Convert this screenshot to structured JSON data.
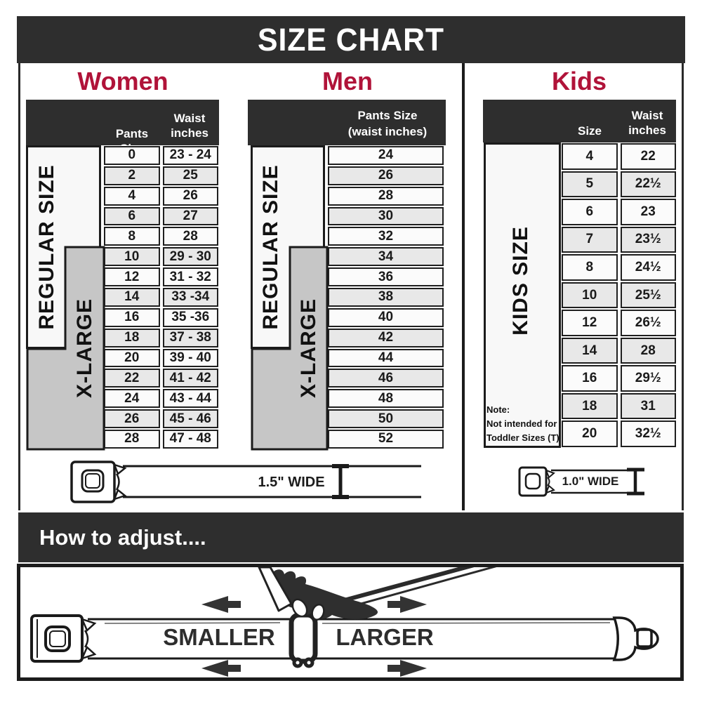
{
  "title": "SIZE CHART",
  "colors": {
    "accent": "#b01339",
    "dark": "#2e2e2e",
    "gray_box": "#c6c6c6",
    "row_base": "#fbfbfb",
    "row_alt": "#e8e8e8"
  },
  "sections": {
    "women": {
      "heading": "Women",
      "side_regular": "REGULAR SIZE",
      "side_xlarge": "X-LARGE",
      "col_pants": "Pants Size",
      "col_waist": "Waist inches",
      "rows": [
        [
          "0",
          "23 - 24"
        ],
        [
          "2",
          "25"
        ],
        [
          "4",
          "26"
        ],
        [
          "6",
          "27"
        ],
        [
          "8",
          "28"
        ],
        [
          "10",
          "29 - 30"
        ],
        [
          "12",
          "31 - 32"
        ],
        [
          "14",
          "33 -34"
        ],
        [
          "16",
          "35 -36"
        ],
        [
          "18",
          "37 - 38"
        ],
        [
          "20",
          "39 - 40"
        ],
        [
          "22",
          "41 - 42"
        ],
        [
          "24",
          "43 - 44"
        ],
        [
          "26",
          "45 - 46"
        ],
        [
          "28",
          "47 - 48"
        ]
      ]
    },
    "men": {
      "heading": "Men",
      "side_regular": "REGULAR SIZE",
      "side_xlarge": "X-LARGE",
      "col_line1": "Pants Size",
      "col_line2": "(waist inches)",
      "rows": [
        "24",
        "26",
        "28",
        "30",
        "32",
        "34",
        "36",
        "38",
        "40",
        "42",
        "44",
        "46",
        "48",
        "50",
        "52"
      ]
    },
    "kids": {
      "heading": "Kids",
      "side": "KIDS SIZE",
      "col_size": "Size",
      "col_waist": "Waist inches",
      "rows": [
        [
          "4",
          "22"
        ],
        [
          "5",
          "22½"
        ],
        [
          "6",
          "23"
        ],
        [
          "7",
          "23½"
        ],
        [
          "8",
          "24½"
        ],
        [
          "10",
          "25½"
        ],
        [
          "12",
          "26½"
        ],
        [
          "14",
          "28"
        ],
        [
          "16",
          "29½"
        ],
        [
          "18",
          "31"
        ],
        [
          "20",
          "32½"
        ]
      ],
      "note_label": "Note:",
      "note_line1": "Not intended for",
      "note_line2": "Toddler Sizes (T)"
    }
  },
  "belts": {
    "adult_width_label": "1.5\" WIDE",
    "kids_width_label": "1.0\" WIDE"
  },
  "adjust": {
    "heading": "How to adjust....",
    "smaller": "SMALLER",
    "larger": "LARGER"
  }
}
